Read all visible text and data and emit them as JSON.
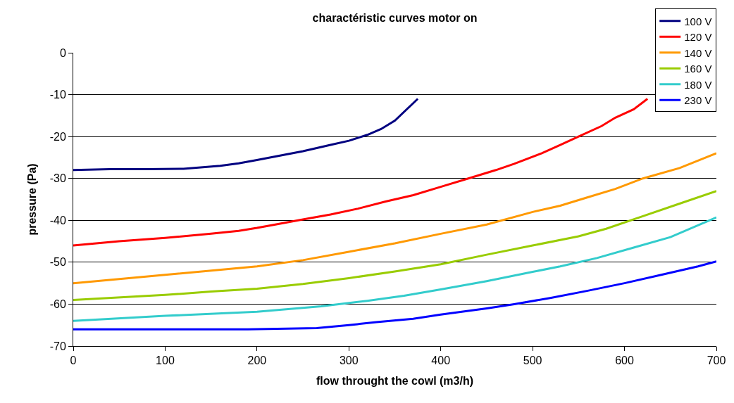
{
  "chart_data": {
    "type": "line",
    "title": "charactéristic curves motor on",
    "xlabel": "flow throught the cowl (m3/h)",
    "ylabel": "pressure (Pa)",
    "xlim": [
      0,
      700
    ],
    "xticks": [
      0,
      100,
      200,
      300,
      400,
      500,
      600,
      700
    ],
    "ylim": [
      -70,
      0
    ],
    "yticks": [
      -70,
      -60,
      -50,
      -40,
      -30,
      -20,
      -10,
      0
    ],
    "grid": "y",
    "legend": "top right",
    "marker": "none",
    "line_style": "solid",
    "series": [
      {
        "name": "100 V",
        "color": "#000080",
        "x": [
          0,
          40,
          80,
          120,
          160,
          180,
          200,
          250,
          280,
          300,
          320,
          335,
          350,
          375
        ],
        "values": [
          -28,
          -27.8,
          -27.8,
          -27.7,
          -27,
          -26.4,
          -25.6,
          -23.5,
          -22,
          -21,
          -19.6,
          -18.2,
          -16.2,
          -11
        ]
      },
      {
        "name": "120 V",
        "color": "#ff0000",
        "x": [
          0,
          50,
          100,
          150,
          180,
          200,
          220,
          250,
          280,
          310,
          340,
          370,
          400,
          430,
          460,
          480,
          510,
          530,
          550,
          575,
          590,
          610,
          625
        ],
        "values": [
          -46,
          -45,
          -44.2,
          -43.2,
          -42.5,
          -41.8,
          -41,
          -39.8,
          -38.6,
          -37.2,
          -35.5,
          -34,
          -32,
          -30,
          -28,
          -26.5,
          -24,
          -22,
          -20,
          -17.5,
          -15.5,
          -13.5,
          -11
        ]
      },
      {
        "name": "140 V",
        "color": "#ff9900",
        "x": [
          0,
          100,
          200,
          250,
          300,
          350,
          400,
          450,
          500,
          530,
          560,
          590,
          620,
          660,
          700
        ],
        "values": [
          -55,
          -53,
          -51,
          -49.5,
          -47.5,
          -45.5,
          -43.2,
          -41,
          -38,
          -36.5,
          -34.5,
          -32.5,
          -30,
          -27.5,
          -24
        ]
      },
      {
        "name": "160 V",
        "color": "#99cc00",
        "x": [
          0,
          100,
          150,
          200,
          250,
          300,
          350,
          400,
          450,
          500,
          550,
          580,
          620,
          660,
          700
        ],
        "values": [
          -59,
          -57.8,
          -57,
          -56.3,
          -55.2,
          -53.8,
          -52.2,
          -50.5,
          -48.2,
          -46,
          -43.8,
          -42,
          -39,
          -36,
          -33
        ]
      },
      {
        "name": "180 V",
        "color": "#33cccc",
        "x": [
          0,
          100,
          200,
          270,
          320,
          360,
          400,
          450,
          500,
          530,
          570,
          610,
          650,
          700
        ],
        "values": [
          -64,
          -62.8,
          -61.8,
          -60.5,
          -59.2,
          -58,
          -56.5,
          -54.5,
          -52.3,
          -51,
          -49,
          -46.5,
          -44,
          -39.3
        ]
      },
      {
        "name": "230 V",
        "color": "#0000ff",
        "x": [
          0,
          100,
          190,
          265,
          300,
          330,
          370,
          400,
          450,
          480,
          520,
          560,
          600,
          640,
          680,
          700
        ],
        "values": [
          -66,
          -66,
          -66,
          -65.7,
          -65,
          -64.3,
          -63.5,
          -62.5,
          -61,
          -60,
          -58.5,
          -56.8,
          -55,
          -53,
          -51,
          -49.8
        ]
      }
    ]
  }
}
